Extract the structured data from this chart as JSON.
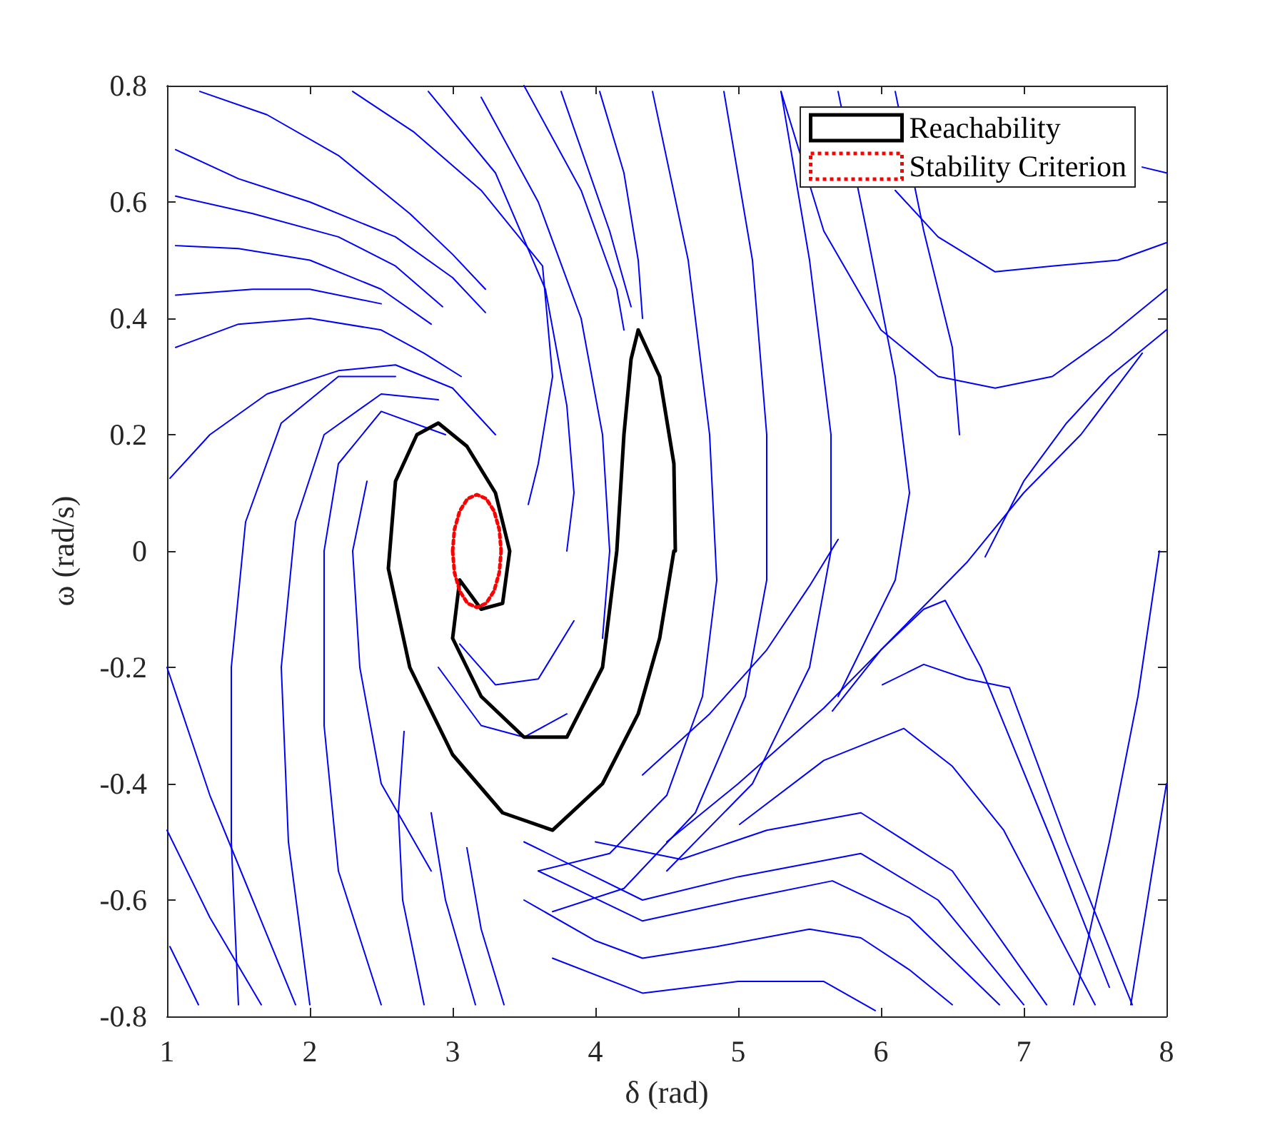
{
  "chart_data": {
    "type": "line",
    "xlabel": "δ (rad)",
    "ylabel": "ω (rad/s)",
    "xlim": [
      1,
      8
    ],
    "xticks": [
      1,
      2,
      3,
      4,
      5,
      6,
      7,
      8
    ],
    "ylim": [
      -0.8,
      0.8
    ],
    "yticks": [
      -0.8,
      -0.6,
      -0.4,
      -0.2,
      0,
      0.2,
      0.4,
      0.6,
      0.8
    ],
    "grid": false,
    "legend": "top right",
    "marker": "none",
    "series": [
      {
        "color": "#0000ff",
        "x": [
          1.23,
          1.7,
          2.2,
          2.7,
          3.0,
          3.23
        ],
        "values": [
          0.79,
          0.75,
          0.68,
          0.58,
          0.51,
          0.45
        ]
      },
      {
        "color": "#0000ff",
        "x": [
          2.3,
          2.73,
          3.2,
          3.63,
          3.7,
          3.6,
          3.53
        ],
        "values": [
          0.79,
          0.72,
          0.62,
          0.49,
          0.3,
          0.15,
          0.08
        ]
      },
      {
        "color": "#0000ff",
        "x": [
          2.83,
          3.3,
          3.65,
          3.8,
          3.85,
          3.8
        ],
        "values": [
          0.79,
          0.65,
          0.45,
          0.25,
          0.1,
          0.0
        ]
      },
      {
        "color": "#0000ff",
        "x": [
          3.2,
          3.6,
          3.9,
          4.05,
          4.1,
          4.05
        ],
        "values": [
          0.78,
          0.6,
          0.4,
          0.2,
          0.0,
          -0.15
        ]
      },
      {
        "color": "#0000ff",
        "x": [
          3.5,
          3.9,
          4.15,
          4.2
        ],
        "values": [
          0.8,
          0.62,
          0.45,
          0.38
        ]
      },
      {
        "color": "#0000ff",
        "x": [
          3.76,
          4.1,
          4.25
        ],
        "values": [
          0.79,
          0.55,
          0.42
        ]
      },
      {
        "color": "#0000ff",
        "x": [
          4.03,
          4.2,
          4.3,
          4.33
        ],
        "values": [
          0.79,
          0.65,
          0.5,
          0.4
        ]
      },
      {
        "color": "#0000ff",
        "x": [
          1.06,
          1.5,
          2.0,
          2.6,
          3.0,
          3.23
        ],
        "values": [
          0.69,
          0.64,
          0.6,
          0.54,
          0.47,
          0.41
        ]
      },
      {
        "color": "#0000ff",
        "x": [
          1.06,
          1.6,
          2.2,
          2.6,
          2.93
        ],
        "values": [
          0.61,
          0.58,
          0.54,
          0.49,
          0.42
        ]
      },
      {
        "color": "#0000ff",
        "x": [
          1.06,
          1.5,
          2.0,
          2.5,
          2.85
        ],
        "values": [
          0.525,
          0.52,
          0.5,
          0.45,
          0.39
        ]
      },
      {
        "color": "#0000ff",
        "x": [
          1.06,
          1.6,
          2.0,
          2.5
        ],
        "values": [
          0.44,
          0.45,
          0.45,
          0.425
        ]
      },
      {
        "color": "#0000ff",
        "x": [
          1.06,
          1.5,
          2.0,
          2.5,
          2.8,
          3.06
        ],
        "values": [
          0.35,
          0.39,
          0.4,
          0.38,
          0.34,
          0.3
        ]
      },
      {
        "color": "#0000ff",
        "x": [
          1.02,
          1.3,
          1.7,
          2.2,
          2.6,
          3.0,
          3.3
        ],
        "values": [
          0.125,
          0.2,
          0.27,
          0.31,
          0.32,
          0.28,
          0.2
        ]
      },
      {
        "color": "#0000ff",
        "x": [
          1.0,
          1.3,
          1.6,
          1.9
        ],
        "values": [
          -0.2,
          -0.42,
          -0.6,
          -0.78
        ]
      },
      {
        "color": "#0000ff",
        "x": [
          1.0,
          1.3,
          1.66
        ],
        "values": [
          -0.48,
          -0.63,
          -0.78
        ]
      },
      {
        "color": "#0000ff",
        "x": [
          1.02,
          1.22
        ],
        "values": [
          -0.68,
          -0.78
        ]
      },
      {
        "color": "#0000ff",
        "x": [
          1.5,
          1.45,
          1.45,
          1.55,
          1.8,
          2.2,
          2.6
        ],
        "values": [
          -0.78,
          -0.5,
          -0.2,
          0.05,
          0.22,
          0.3,
          0.3
        ]
      },
      {
        "color": "#0000ff",
        "x": [
          2.0,
          1.85,
          1.8,
          1.9,
          2.1,
          2.5,
          2.9
        ],
        "values": [
          -0.78,
          -0.5,
          -0.2,
          0.05,
          0.2,
          0.27,
          0.26
        ]
      },
      {
        "color": "#0000ff",
        "x": [
          2.5,
          2.2,
          2.1,
          2.1,
          2.2,
          2.5,
          2.95
        ],
        "values": [
          -0.78,
          -0.55,
          -0.3,
          0.0,
          0.15,
          0.24,
          0.2
        ]
      },
      {
        "color": "#0000ff",
        "x": [
          2.85,
          2.5,
          2.35,
          2.3,
          2.4
        ],
        "values": [
          -0.55,
          -0.4,
          -0.2,
          0.0,
          0.12
        ]
      },
      {
        "color": "#0000ff",
        "x": [
          3.05,
          3.3,
          3.6,
          3.85
        ],
        "values": [
          -0.16,
          -0.23,
          -0.22,
          -0.12
        ]
      },
      {
        "color": "#0000ff",
        "x": [
          2.9,
          3.2,
          3.5,
          3.8
        ],
        "values": [
          -0.2,
          -0.3,
          -0.32,
          -0.28
        ]
      },
      {
        "color": "#0000ff",
        "x": [
          2.8,
          2.65,
          2.62,
          2.66
        ],
        "values": [
          -0.78,
          -0.6,
          -0.45,
          -0.31
        ]
      },
      {
        "color": "#0000ff",
        "x": [
          3.16,
          2.95,
          2.85
        ],
        "values": [
          -0.78,
          -0.6,
          -0.45
        ]
      },
      {
        "color": "#0000ff",
        "x": [
          3.36,
          3.2,
          3.1
        ],
        "values": [
          -0.78,
          -0.65,
          -0.51
        ]
      },
      {
        "color": "#0000ff",
        "x": [
          3.7,
          4.33,
          5.0,
          5.6,
          5.96
        ],
        "values": [
          -0.7,
          -0.76,
          -0.74,
          -0.74,
          -0.79
        ]
      },
      {
        "color": "#0000ff",
        "x": [
          3.5,
          4.0,
          4.33,
          4.85,
          5.5,
          5.86,
          6.2,
          6.5
        ],
        "values": [
          -0.6,
          -0.67,
          -0.7,
          -0.68,
          -0.65,
          -0.665,
          -0.72,
          -0.78
        ]
      },
      {
        "color": "#0000ff",
        "x": [
          3.6,
          4.33,
          5.0,
          5.66,
          6.2,
          6.83
        ],
        "values": [
          -0.55,
          -0.636,
          -0.6,
          -0.567,
          -0.63,
          -0.78
        ]
      },
      {
        "color": "#0000ff",
        "x": [
          3.5,
          4.33,
          5.0,
          5.86,
          6.4,
          7.0
        ],
        "values": [
          -0.5,
          -0.6,
          -0.56,
          -0.52,
          -0.6,
          -0.78
        ]
      },
      {
        "color": "#0000ff",
        "x": [
          4.0,
          4.6,
          5.2,
          5.86,
          6.5,
          7.16
        ],
        "values": [
          -0.5,
          -0.53,
          -0.48,
          -0.45,
          -0.55,
          -0.78
        ]
      },
      {
        "color": "#0000ff",
        "x": [
          5.01,
          5.6,
          6.16,
          6.5,
          6.86,
          7.5
        ],
        "values": [
          -0.47,
          -0.36,
          -0.305,
          -0.37,
          -0.48,
          -0.78
        ]
      },
      {
        "color": "#0000ff",
        "x": [
          6.01,
          6.3,
          6.6,
          6.9,
          7.3,
          7.76
        ],
        "values": [
          -0.23,
          -0.195,
          -0.22,
          -0.235,
          -0.5,
          -0.78
        ]
      },
      {
        "color": "#0000ff",
        "x": [
          5.66,
          6.0,
          6.3,
          6.45,
          6.7,
          7.2,
          7.6
        ],
        "values": [
          -0.275,
          -0.17,
          -0.1,
          -0.085,
          -0.2,
          -0.5,
          -0.75
        ]
      },
      {
        "color": "#0000ff",
        "x": [
          4.33,
          4.8,
          5.2,
          5.5,
          5.7
        ],
        "values": [
          -0.385,
          -0.28,
          -0.17,
          -0.06,
          0.02
        ]
      },
      {
        "color": "#0000ff",
        "x": [
          4.5,
          5.0,
          5.6,
          6.2,
          6.6,
          7.0,
          7.4,
          7.83
        ],
        "values": [
          -0.5,
          -0.4,
          -0.27,
          -0.12,
          -0.02,
          0.1,
          0.2,
          0.34
        ]
      },
      {
        "color": "#0000ff",
        "x": [
          6.73,
          7.0,
          7.3,
          7.6,
          8.0
        ],
        "values": [
          -0.01,
          0.12,
          0.22,
          0.3,
          0.38
        ]
      },
      {
        "color": "#0000ff",
        "x": [
          8.0,
          7.66,
          7.2,
          6.8,
          6.4,
          6.1
        ],
        "values": [
          0.53,
          0.5,
          0.49,
          0.48,
          0.54,
          0.62
        ]
      },
      {
        "color": "#0000ff",
        "x": [
          8.0,
          7.6,
          7.2,
          6.8,
          6.4,
          6.0,
          5.6,
          5.3
        ],
        "values": [
          0.45,
          0.37,
          0.3,
          0.28,
          0.3,
          0.38,
          0.55,
          0.79
        ]
      },
      {
        "color": "#0000ff",
        "x": [
          7.83,
          8.0
        ],
        "values": [
          0.66,
          0.65
        ]
      },
      {
        "color": "#0000ff",
        "x": [
          4.4,
          4.65,
          4.8,
          4.85,
          4.75,
          4.5,
          4.1,
          3.6
        ],
        "values": [
          0.79,
          0.5,
          0.2,
          -0.05,
          -0.25,
          -0.42,
          -0.52,
          -0.55
        ]
      },
      {
        "color": "#0000ff",
        "x": [
          4.9,
          5.1,
          5.2,
          5.2,
          5.05,
          4.7,
          4.2,
          3.7
        ],
        "values": [
          0.79,
          0.5,
          0.2,
          -0.05,
          -0.25,
          -0.45,
          -0.58,
          -0.62
        ]
      },
      {
        "color": "#0000ff",
        "x": [
          5.3,
          5.5,
          5.65,
          5.65,
          5.5,
          5.1,
          4.5
        ],
        "values": [
          0.79,
          0.5,
          0.2,
          0.0,
          -0.2,
          -0.4,
          -0.55
        ]
      },
      {
        "color": "#0000ff",
        "x": [
          5.7,
          5.9,
          6.1,
          6.2,
          6.1,
          5.7
        ],
        "values": [
          0.79,
          0.55,
          0.3,
          0.1,
          -0.05,
          -0.25
        ]
      },
      {
        "color": "#0000ff",
        "x": [
          6.1,
          6.3,
          6.5,
          6.55
        ],
        "values": [
          0.79,
          0.55,
          0.35,
          0.2
        ]
      },
      {
        "color": "#0000ff",
        "x": [
          7.35,
          7.6,
          7.8,
          7.95
        ],
        "values": [
          -0.78,
          -0.5,
          -0.25,
          0.0
        ]
      },
      {
        "color": "#0000ff",
        "x": [
          7.75,
          7.9,
          8.0
        ],
        "values": [
          -0.78,
          -0.55,
          -0.4
        ]
      },
      {
        "name": "Reachability",
        "color": "#000000",
        "line_style": "solid",
        "x": [
          2.55,
          2.7,
          3.0,
          3.35,
          3.7,
          4.05,
          4.3,
          4.45,
          4.55,
          null,
          2.55,
          2.6,
          2.75,
          2.9,
          3.1,
          3.3,
          3.4,
          null,
          3.05,
          3.2,
          3.35,
          3.4,
          null,
          3.0,
          3.05,
          null,
          3.0,
          3.2,
          3.5,
          3.8,
          4.05,
          4.15,
          4.2,
          4.25,
          4.3,
          null,
          4.3,
          4.45,
          4.55,
          4.56
        ],
        "values": [
          -0.03,
          -0.2,
          -0.35,
          -0.45,
          -0.48,
          -0.4,
          -0.28,
          -0.15,
          0.0,
          null,
          -0.03,
          0.12,
          0.2,
          0.22,
          0.18,
          0.1,
          0.0,
          null,
          -0.05,
          -0.1,
          -0.09,
          0.0,
          null,
          -0.15,
          -0.05,
          null,
          -0.15,
          -0.25,
          -0.32,
          -0.32,
          -0.2,
          0.0,
          0.2,
          0.33,
          0.38,
          null,
          0.38,
          0.3,
          0.15,
          0.0
        ]
      },
      {
        "name": "Stability Criterion",
        "color": "#ff0000",
        "line_style": "dotted",
        "x": [
          3.0,
          3.013,
          3.05,
          3.105,
          3.17,
          3.235,
          3.29,
          3.327,
          3.34,
          null,
          3.0,
          3.013,
          3.05,
          3.105,
          3.17,
          3.235,
          3.29,
          3.327,
          3.34
        ],
        "values": [
          0,
          0.037,
          0.069,
          0.09,
          0.097,
          0.09,
          0.069,
          0.037,
          0,
          null,
          0,
          -0.037,
          -0.069,
          -0.09,
          -0.097,
          -0.09,
          -0.069,
          -0.037,
          0
        ]
      }
    ]
  }
}
